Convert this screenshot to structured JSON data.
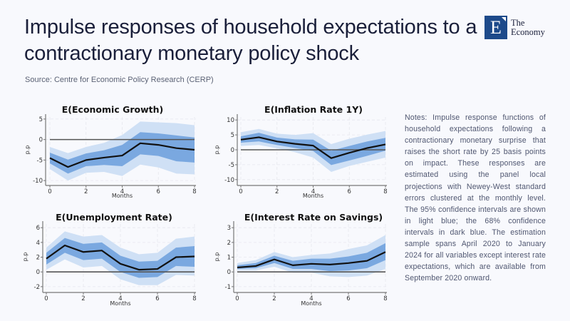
{
  "header": {
    "title": "Impulse responses of household expectations to a contractionary monetary policy shock",
    "source": "Source: Centre for Economic Policy Research (CERP)"
  },
  "logo": {
    "letter": "E",
    "line1": "The",
    "line2": "Economy",
    "color": "#1d4a8a"
  },
  "notes": "Notes: Impulse response functions of household expectations following a contractionary monetary surprise that raises the short rate by 25 basis points on impact. These responses are estimated using the panel local projections with Newey-West standard errors clustered at the monthly level. The 95% confidence intervals are shown in light blue; the 68% confidence intervals in dark blue. The estimation sample spans April 2020 to January 2024 for all variables except interest rate expectations, which are available from September 2020 onward.",
  "colors": {
    "band95": "#cfe0f5",
    "band68": "#7aa8e0",
    "line": "#111111",
    "zero": "#555555"
  },
  "chart_data": [
    {
      "type": "area",
      "title": "E(Economic Growth)",
      "xlabel": "Months",
      "ylabel": "p.p",
      "x": [
        0,
        1,
        2,
        3,
        4,
        5,
        6,
        7,
        8
      ],
      "xticks": [
        0,
        2,
        4,
        6,
        8
      ],
      "yticks": [
        5,
        0,
        -5,
        -10
      ],
      "ylim": [
        -10.5,
        5.5
      ],
      "grid": true,
      "series": [
        {
          "name": "Point estimate",
          "values": [
            -4.5,
            -6.7,
            -5.0,
            -4.4,
            -3.9,
            -0.9,
            -1.3,
            -2.1,
            -2.5
          ]
        },
        {
          "name": "68% CI lower",
          "values": [
            -5.8,
            -8.3,
            -6.5,
            -6.2,
            -6.5,
            -3.6,
            -4.0,
            -5.3,
            -5.6
          ]
        },
        {
          "name": "68% CI upper",
          "values": [
            -3.2,
            -4.9,
            -3.4,
            -2.6,
            -1.3,
            1.8,
            1.5,
            1.0,
            0.5
          ]
        },
        {
          "name": "95% CI lower",
          "values": [
            -7.2,
            -10.0,
            -8.1,
            -7.9,
            -8.9,
            -6.1,
            -6.8,
            -8.3,
            -8.5
          ]
        },
        {
          "name": "95% CI upper",
          "values": [
            -1.8,
            -3.3,
            -1.8,
            -0.8,
            1.1,
            4.4,
            4.2,
            4.0,
            3.5
          ]
        }
      ]
    },
    {
      "type": "area",
      "title": "E(Inflation Rate 1Y)",
      "xlabel": "Months",
      "ylabel": "p.p",
      "x": [
        0,
        1,
        2,
        3,
        4,
        5,
        6,
        7,
        8
      ],
      "xticks": [
        0,
        2,
        4,
        6,
        8
      ],
      "yticks": [
        10,
        5,
        0,
        -5,
        -10
      ],
      "ylim": [
        -11,
        11
      ],
      "grid": true,
      "series": [
        {
          "name": "Point estimate",
          "values": [
            3.4,
            4.2,
            2.8,
            2.0,
            1.4,
            -2.8,
            -1.0,
            0.6,
            1.8
          ]
        },
        {
          "name": "68% CI lower",
          "values": [
            2.4,
            2.8,
            1.6,
            0.6,
            -0.4,
            -5.1,
            -3.6,
            -2.0,
            -0.3
          ]
        },
        {
          "name": "68% CI upper",
          "values": [
            4.5,
            5.7,
            4.1,
            3.5,
            3.4,
            -0.3,
            1.3,
            2.8,
            4.0
          ]
        },
        {
          "name": "95% CI lower",
          "values": [
            1.3,
            1.6,
            0.5,
            -0.8,
            -2.6,
            -7.4,
            -5.4,
            -4.0,
            -2.6
          ]
        },
        {
          "name": "95% CI upper",
          "values": [
            5.9,
            7.0,
            5.4,
            5.0,
            5.6,
            1.9,
            3.7,
            5.1,
            6.3
          ]
        }
      ]
    },
    {
      "type": "area",
      "title": "E(Unemployment Rate)",
      "xlabel": "Months",
      "ylabel": "p.p",
      "x": [
        0,
        1,
        2,
        3,
        4,
        5,
        6,
        7,
        8
      ],
      "xticks": [
        0,
        2,
        4,
        6,
        8
      ],
      "yticks": [
        6,
        4,
        2,
        0,
        -2
      ],
      "ylim": [
        -2.4,
        6.5
      ],
      "grid": true,
      "series": [
        {
          "name": "Point estimate",
          "values": [
            1.8,
            3.6,
            2.7,
            2.9,
            1.1,
            0.3,
            0.4,
            2.0,
            2.1
          ]
        },
        {
          "name": "68% CI lower",
          "values": [
            1.0,
            2.6,
            1.6,
            1.8,
            0.0,
            -0.8,
            -0.7,
            0.8,
            0.7
          ]
        },
        {
          "name": "68% CI upper",
          "values": [
            2.6,
            4.6,
            3.8,
            4.0,
            2.2,
            1.4,
            1.5,
            3.3,
            3.5
          ]
        },
        {
          "name": "95% CI lower",
          "values": [
            0.3,
            1.7,
            0.6,
            0.8,
            -1.0,
            -1.8,
            -1.8,
            -0.4,
            -0.5
          ]
        },
        {
          "name": "95% CI upper",
          "values": [
            3.3,
            5.5,
            4.8,
            5.0,
            3.3,
            2.4,
            2.6,
            4.5,
            4.8
          ]
        }
      ]
    },
    {
      "type": "area",
      "title": "E(Interest Rate on Savings)",
      "xlabel": "Months",
      "ylabel": "p.p",
      "x": [
        0,
        1,
        2,
        3,
        4,
        5,
        6,
        7,
        8
      ],
      "xticks": [
        0,
        2,
        4,
        6,
        8
      ],
      "yticks": [
        3,
        2,
        1,
        0,
        -1
      ],
      "ylim": [
        -1.2,
        3.25
      ],
      "grid": true,
      "series": [
        {
          "name": "Point estimate",
          "values": [
            0.3,
            0.4,
            0.85,
            0.45,
            0.55,
            0.5,
            0.6,
            0.75,
            1.35
          ]
        },
        {
          "name": "68% CI lower",
          "values": [
            0.2,
            0.25,
            0.6,
            0.2,
            0.2,
            0.05,
            0.1,
            0.25,
            0.8
          ]
        },
        {
          "name": "68% CI upper",
          "values": [
            0.45,
            0.6,
            1.1,
            0.75,
            0.9,
            0.9,
            1.05,
            1.3,
            1.95
          ]
        },
        {
          "name": "95% CI lower",
          "values": [
            0.1,
            0.1,
            0.35,
            -0.05,
            -0.05,
            -0.3,
            -0.35,
            -0.25,
            0.2
          ]
        },
        {
          "name": "95% CI upper",
          "values": [
            0.6,
            0.8,
            1.35,
            1.0,
            1.15,
            1.25,
            1.55,
            1.8,
            2.5
          ]
        }
      ]
    }
  ]
}
